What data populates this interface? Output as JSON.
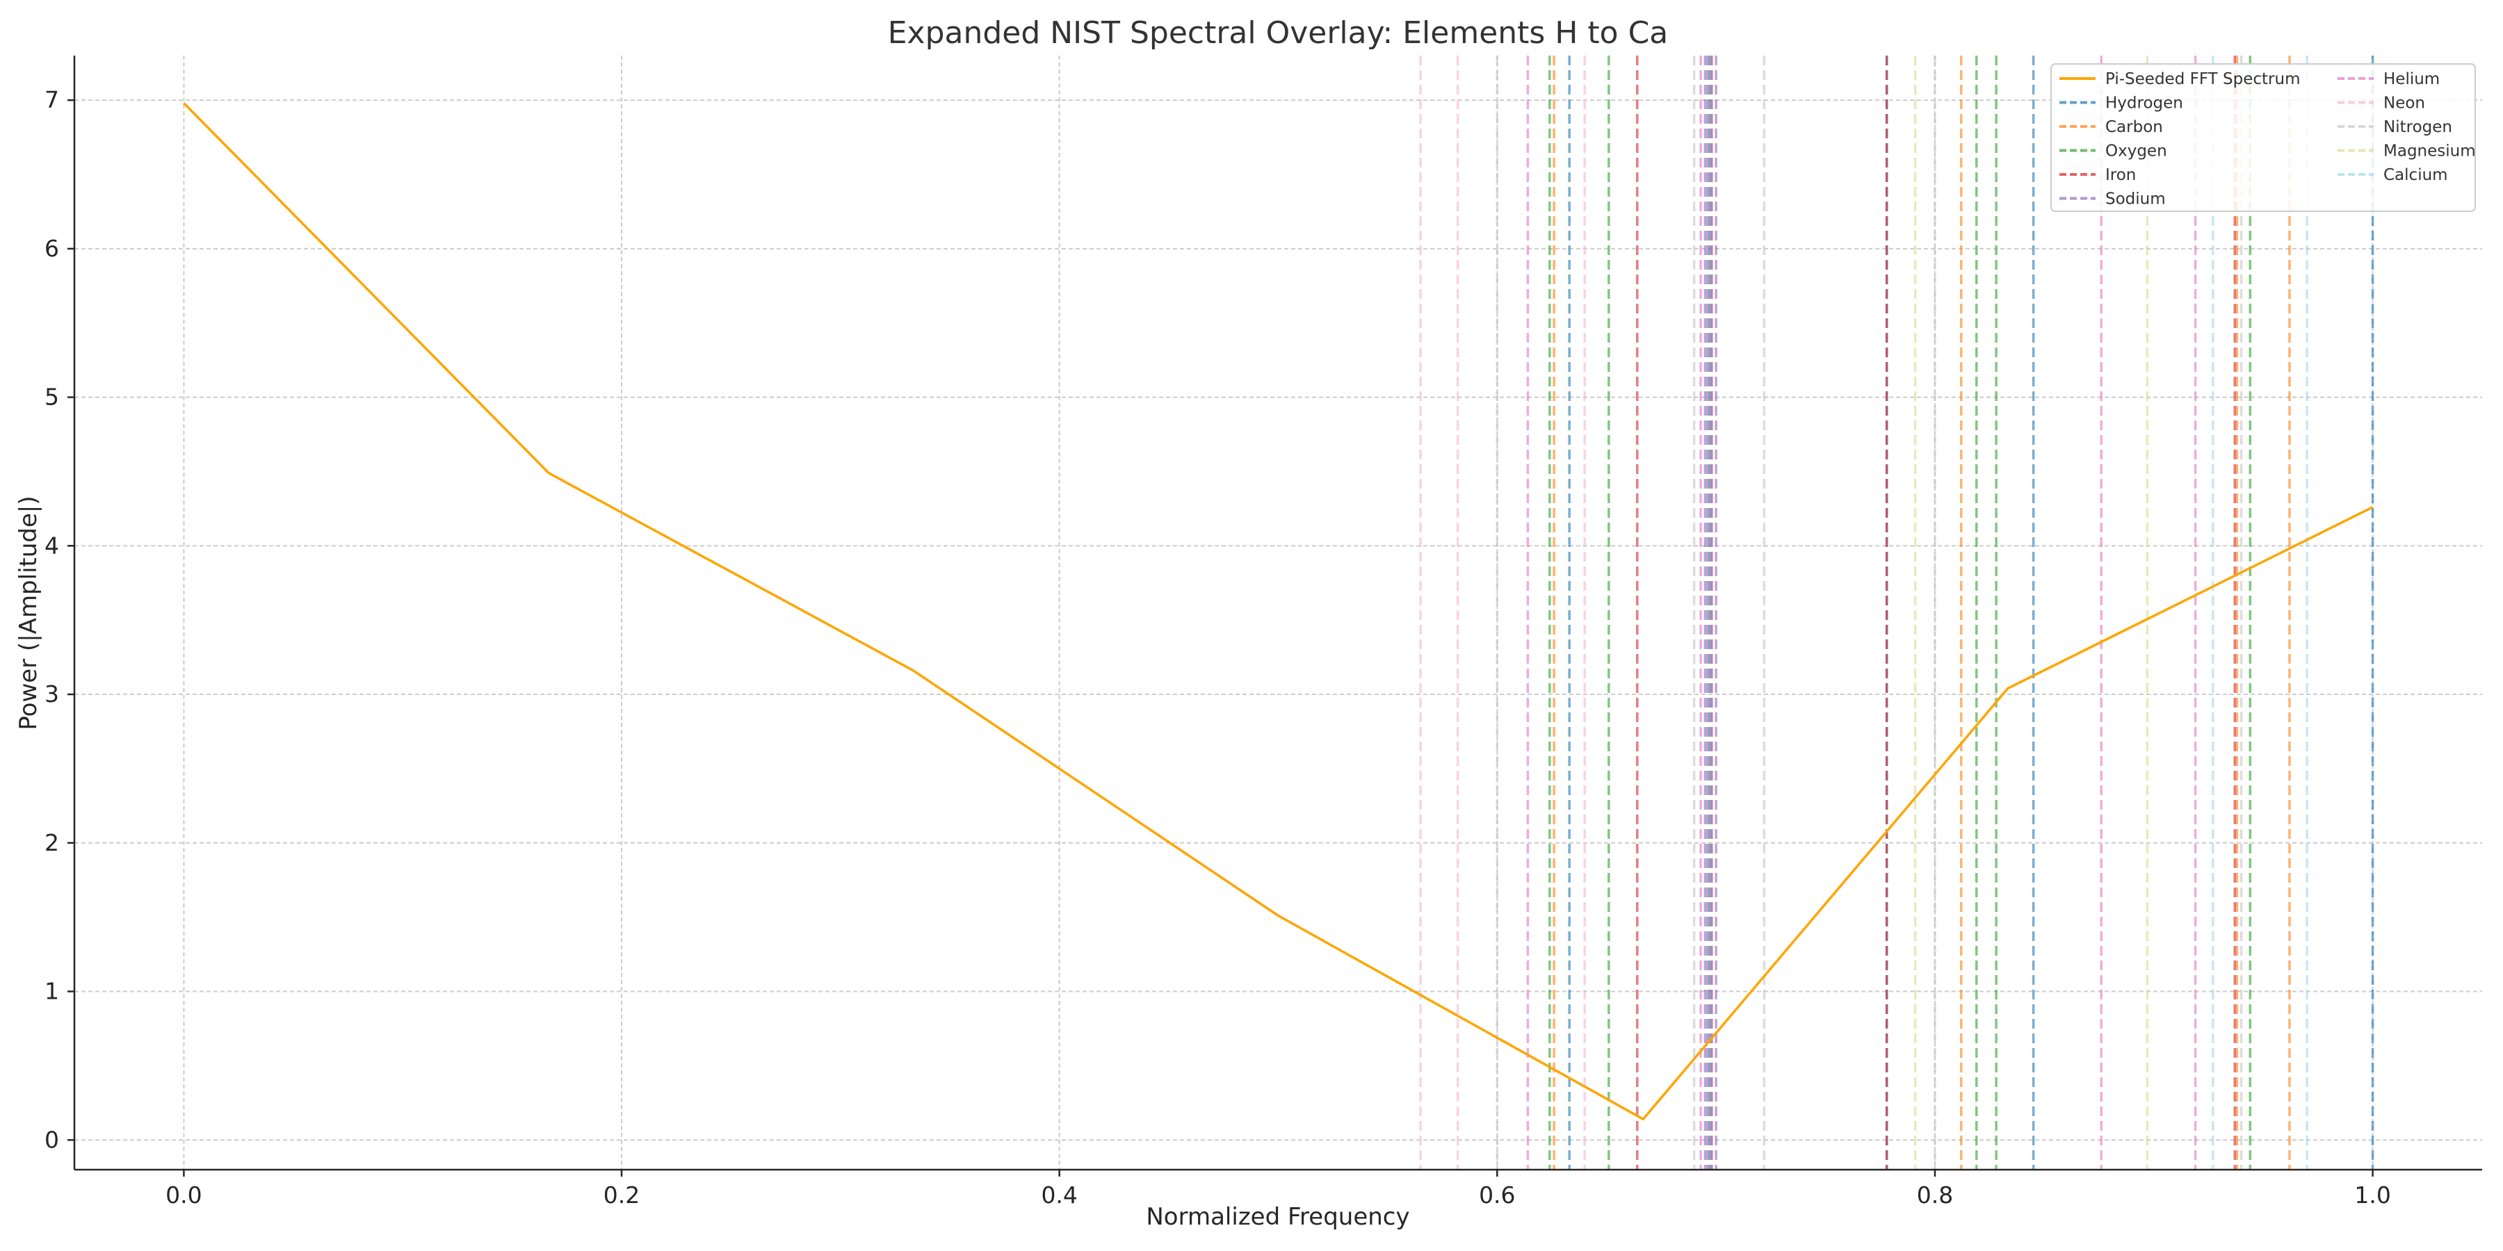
{
  "chart_data": {
    "type": "line",
    "title": "Expanded NIST Spectral Overlay: Elements H to Ca",
    "xlabel": "Normalized Frequency",
    "ylabel": "Power (|Amplitude|)",
    "xlim": [
      -0.05,
      1.05
    ],
    "ylim": [
      -0.2,
      7.3
    ],
    "xticks": [
      0.0,
      0.2,
      0.4,
      0.6,
      0.8,
      1.0
    ],
    "xtick_labels": [
      "0.0",
      "0.2",
      "0.4",
      "0.6",
      "0.8",
      "1.0"
    ],
    "yticks": [
      0,
      1,
      2,
      3,
      4,
      5,
      6,
      7
    ],
    "ytick_labels": [
      "0",
      "1",
      "2",
      "3",
      "4",
      "5",
      "6",
      "7"
    ],
    "grid": true,
    "legend_position": "top-right",
    "legend_columns": 2,
    "spectrum": {
      "name": "Pi-Seeded FFT Spectrum",
      "color": "#ffa500",
      "x": [
        0.0,
        0.1667,
        0.3333,
        0.5,
        0.6667,
        0.8333,
        1.0
      ],
      "y": [
        6.98,
        4.49,
        3.16,
        1.51,
        0.14,
        3.04,
        4.26
      ]
    },
    "elements": [
      {
        "name": "Hydrogen",
        "color": "#1f77b4",
        "lines": [
          0.633,
          0.697,
          0.778,
          0.845,
          1.0
        ]
      },
      {
        "name": "Carbon",
        "color": "#ff7f0e",
        "lines": [
          0.626,
          0.698,
          0.812,
          0.938,
          0.962
        ]
      },
      {
        "name": "Oxygen",
        "color": "#2ca02c",
        "lines": [
          0.624,
          0.651,
          0.819,
          0.828,
          0.944
        ]
      },
      {
        "name": "Iron",
        "color": "#d62728",
        "lines": [
          0.664,
          0.778,
          0.937
        ]
      },
      {
        "name": "Sodium",
        "color": "#9467bd",
        "lines": [
          0.695,
          0.696,
          0.698,
          0.7
        ]
      },
      {
        "name": "Helium",
        "color": "#e377c2",
        "lines": [
          0.614,
          0.693,
          0.876,
          0.919
        ]
      },
      {
        "name": "Neon",
        "color": "#f7b6d2",
        "lines": [
          0.565,
          0.582,
          0.64
        ]
      },
      {
        "name": "Nitrogen",
        "color": "#c7c7c7",
        "lines": [
          0.6,
          0.69,
          0.722,
          0.8,
          0.94
        ]
      },
      {
        "name": "Magnesium",
        "color": "#dbdb8d",
        "lines": [
          0.791,
          0.897
        ]
      },
      {
        "name": "Calcium",
        "color": "#9edae5",
        "lines": [
          0.927,
          0.97
        ]
      }
    ]
  }
}
